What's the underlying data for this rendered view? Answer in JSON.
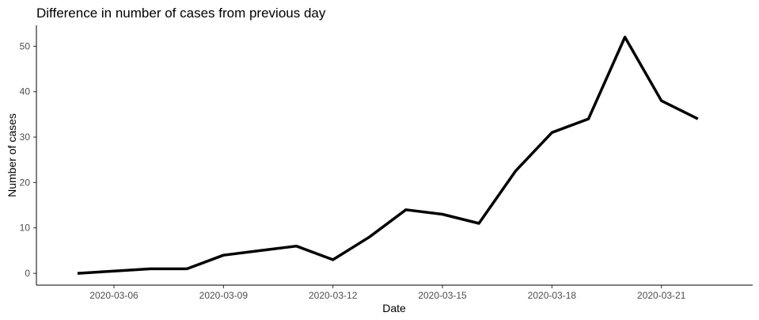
{
  "chart_data": {
    "type": "line",
    "title": "Difference in number of cases from previous day",
    "xlabel": "Date",
    "ylabel": "Number of cases",
    "x_ticks": [
      "2020-03-06",
      "2020-03-09",
      "2020-03-12",
      "2020-03-15",
      "2020-03-18",
      "2020-03-21"
    ],
    "y_ticks": [
      0,
      10,
      20,
      30,
      40,
      50
    ],
    "ylim": [
      -2.6,
      54.6
    ],
    "xlim": [
      "2020-03-03T21:00",
      "2020-03-23T12:00"
    ],
    "grid": false,
    "series": [
      {
        "x": [
          "2020-03-05",
          "2020-03-06",
          "2020-03-07",
          "2020-03-08",
          "2020-03-09",
          "2020-03-10",
          "2020-03-11",
          "2020-03-12",
          "2020-03-13",
          "2020-03-14",
          "2020-03-15",
          "2020-03-16",
          "2020-03-17",
          "2020-03-18",
          "2020-03-19",
          "2020-03-20",
          "2020-03-21",
          "2020-03-22"
        ],
        "values": [
          0,
          0.5,
          1,
          1,
          4,
          5,
          6,
          3,
          8,
          14,
          13,
          11,
          22.5,
          31,
          34,
          52,
          38,
          34
        ],
        "color": "#000000"
      }
    ]
  }
}
